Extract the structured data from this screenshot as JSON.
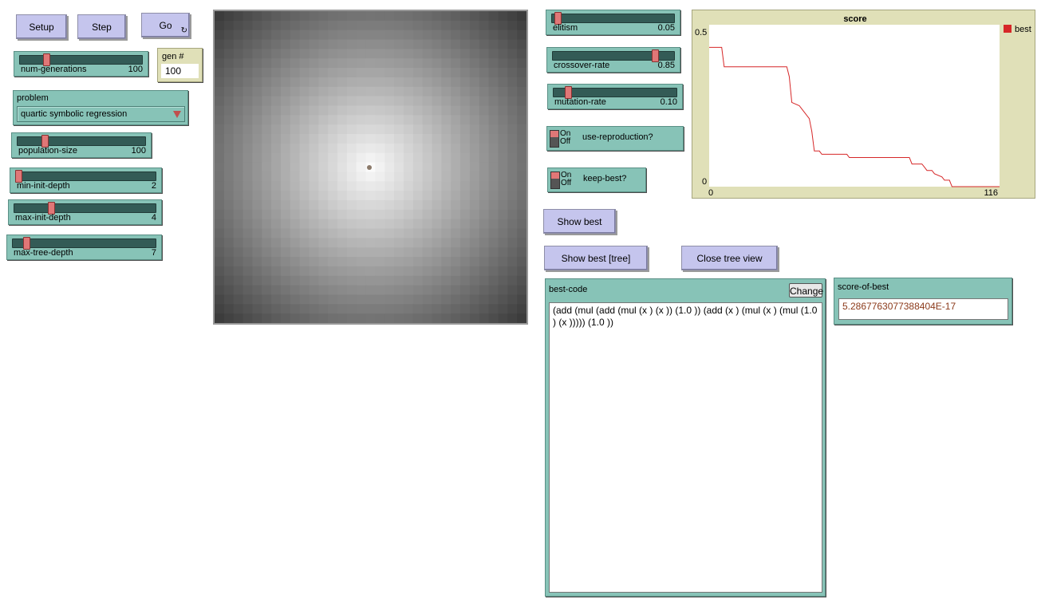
{
  "buttons": {
    "setup": "Setup",
    "step": "Step",
    "go": "Go",
    "go_icon": "forever-icon",
    "show_best": "Show best",
    "show_best_tree": "Show best [tree]",
    "close_tree": "Close tree view",
    "change": "Change"
  },
  "monitors": {
    "gen": {
      "label": "gen #",
      "value": "100"
    },
    "score_of_best": {
      "label": "score-of-best",
      "value": "5.2867763077388404E-17"
    }
  },
  "chooser": {
    "label": "problem",
    "value": "quartic symbolic regression"
  },
  "sliders": {
    "num_generations": {
      "label": "num-generations",
      "value": "100",
      "fraction": 0.2
    },
    "population_size": {
      "label": "population-size",
      "value": "100",
      "fraction": 0.2
    },
    "min_init_depth": {
      "label": "min-init-depth",
      "value": "2",
      "fraction": 0.0
    },
    "max_init_depth": {
      "label": "max-init-depth",
      "value": "4",
      "fraction": 0.25
    },
    "max_tree_depth": {
      "label": "max-tree-depth",
      "value": "7",
      "fraction": 0.08
    },
    "elitism": {
      "label": "elitism",
      "value": "0.05",
      "fraction": 0.03
    },
    "crossover_rate": {
      "label": "crossover-rate",
      "value": "0.85",
      "fraction": 0.85
    },
    "mutation_rate": {
      "label": "mutation-rate",
      "value": "0.10",
      "fraction": 0.1
    }
  },
  "switches": {
    "use_reproduction": {
      "label": "use-reproduction?",
      "on": "On",
      "off": "Off"
    },
    "keep_best": {
      "label": "keep-best?",
      "on": "On",
      "off": "Off"
    }
  },
  "best_code": {
    "label": "best-code",
    "value": "(add (mul (add (mul (x  ) (x  )) (1.0  )) (add (x  ) (mul (x  ) (mul (1.0  ) (x  ))))) (1.0  ))"
  },
  "colors": {
    "plot_line": "#d62728",
    "legend_swatch": "#d62728"
  },
  "chart_data": {
    "type": "line",
    "title": "score",
    "xlabel": "",
    "ylabel": "",
    "xlim": [
      0,
      116
    ],
    "ylim": [
      0,
      0.5
    ],
    "x_tick_labels": [
      "0",
      "116"
    ],
    "y_tick_labels": [
      "0",
      "0.5"
    ],
    "legend": [
      "best"
    ],
    "series": [
      {
        "name": "best",
        "color": "#d62728",
        "x": [
          0,
          5,
          6,
          31,
          32,
          33,
          36,
          37,
          38,
          40,
          41,
          42,
          44,
          45,
          46,
          55,
          56,
          65,
          66,
          68,
          69,
          72,
          80,
          81,
          85,
          86,
          87,
          89,
          90,
          93,
          94,
          96,
          97,
          116
        ],
        "y": [
          0.43,
          0.43,
          0.37,
          0.37,
          0.34,
          0.26,
          0.25,
          0.24,
          0.23,
          0.21,
          0.17,
          0.11,
          0.11,
          0.1,
          0.1,
          0.1,
          0.09,
          0.09,
          0.09,
          0.09,
          0.09,
          0.09,
          0.09,
          0.07,
          0.07,
          0.06,
          0.05,
          0.05,
          0.04,
          0.03,
          0.02,
          0.02,
          0.0,
          0.0
        ]
      }
    ]
  }
}
